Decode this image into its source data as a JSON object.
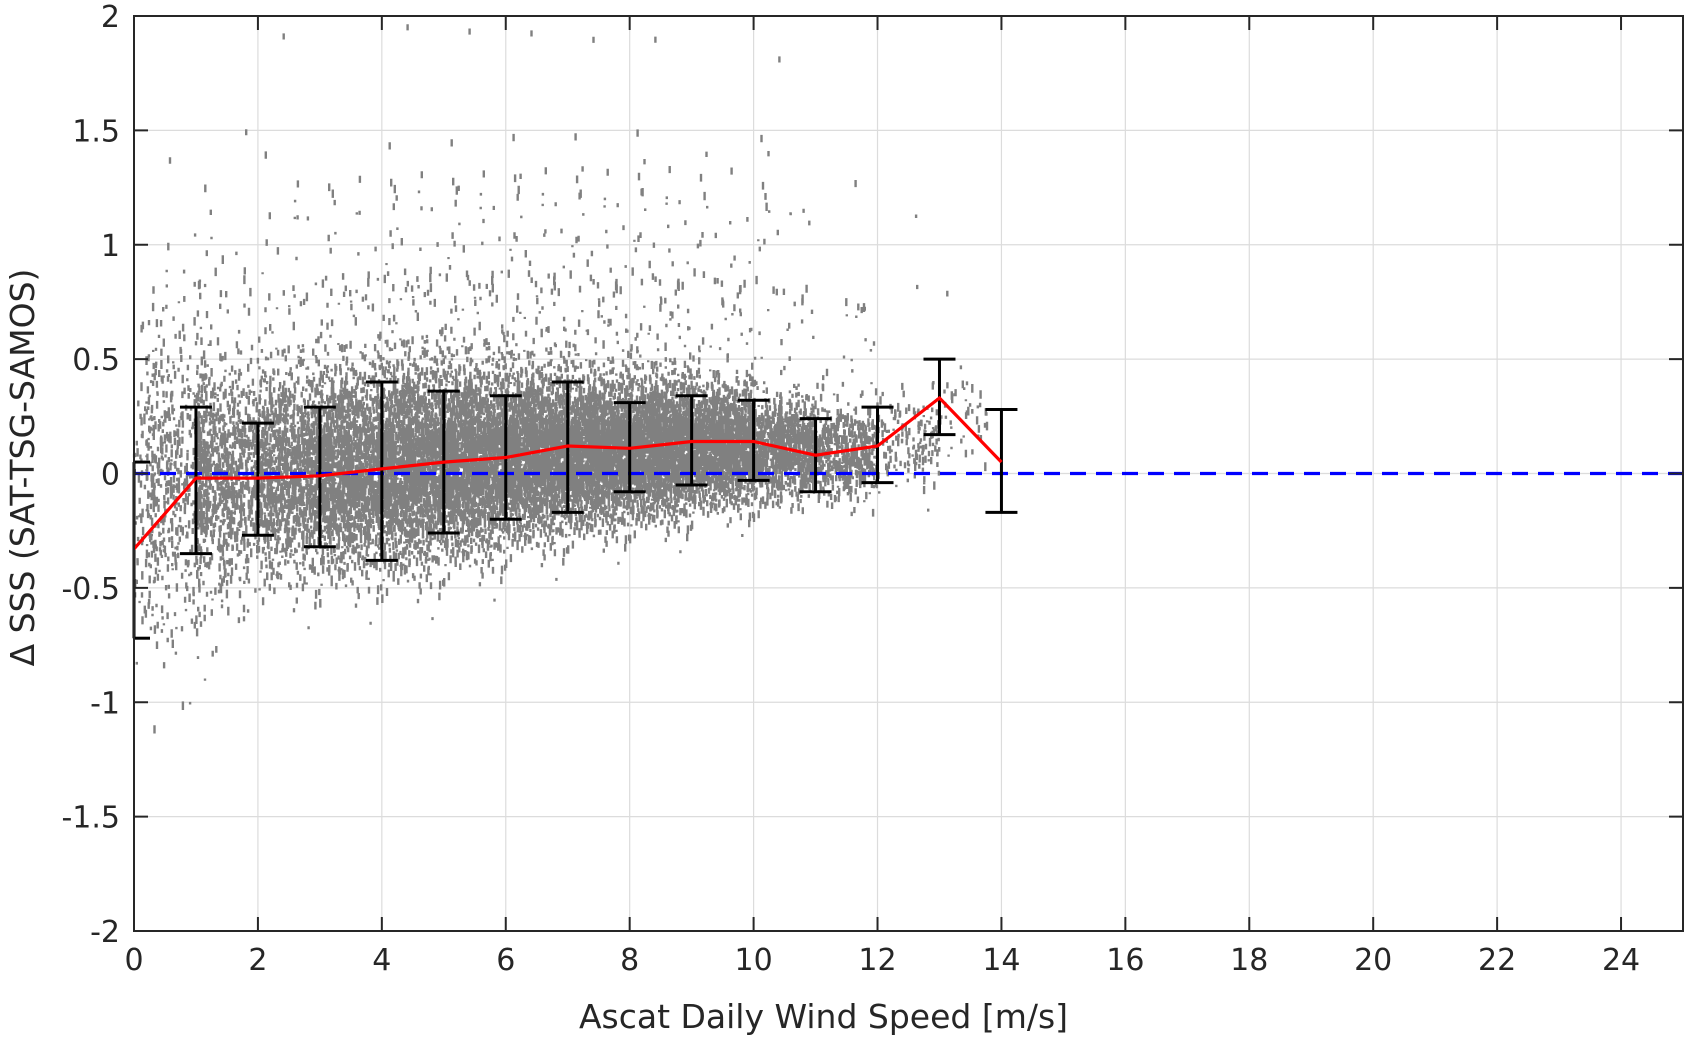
{
  "chart_data": {
    "type": "scatter",
    "title": "",
    "xlabel": "Ascat Daily Wind Speed [m/s]",
    "ylabel": "Δ SSS (SAT-TSG-SAMOS)",
    "xlim": [
      0,
      25
    ],
    "ylim": [
      -2,
      2
    ],
    "xticks": [
      0,
      2,
      4,
      6,
      8,
      10,
      12,
      14,
      16,
      18,
      20,
      22,
      24
    ],
    "yticks": [
      -2,
      -1.5,
      -1,
      -0.5,
      0,
      0.5,
      1,
      1.5,
      2
    ],
    "xtick_labels": [
      "0",
      "2",
      "4",
      "6",
      "8",
      "10",
      "12",
      "14",
      "16",
      "18",
      "20",
      "22",
      "24"
    ],
    "ytick_labels": [
      "-2",
      "-1.5",
      "-1",
      "-0.5",
      "0",
      "0.5",
      "1",
      "1.5",
      "2"
    ],
    "grid": true,
    "reference_line": {
      "y": 0,
      "style": "dashed",
      "color": "#0000ff"
    },
    "colors": {
      "scatter": "#808080",
      "mean_line": "#ff0000",
      "error_bars": "#000000",
      "reference": "#0000ff"
    },
    "scatter_density": {
      "description_units": "x in m/s, y in ΔSSS",
      "bins": [
        {
          "x": 0.2,
          "center": -0.1,
          "spread": 0.3,
          "n": 260
        },
        {
          "x": 0.7,
          "center": 0.0,
          "spread": 0.35,
          "n": 420
        },
        {
          "x": 1.5,
          "center": 0.0,
          "spread": 0.24,
          "n": 900
        },
        {
          "x": 2.5,
          "center": 0.0,
          "spread": 0.22,
          "n": 1300
        },
        {
          "x": 3.5,
          "center": 0.02,
          "spread": 0.22,
          "n": 1700
        },
        {
          "x": 4.5,
          "center": 0.04,
          "spread": 0.22,
          "n": 2000
        },
        {
          "x": 5.5,
          "center": 0.06,
          "spread": 0.2,
          "n": 2200
        },
        {
          "x": 6.5,
          "center": 0.09,
          "spread": 0.18,
          "n": 2300
        },
        {
          "x": 7.5,
          "center": 0.1,
          "spread": 0.16,
          "n": 2200
        },
        {
          "x": 8.5,
          "center": 0.12,
          "spread": 0.15,
          "n": 2000
        },
        {
          "x": 9.5,
          "center": 0.13,
          "spread": 0.13,
          "n": 1600
        },
        {
          "x": 10.5,
          "center": 0.11,
          "spread": 0.11,
          "n": 1000
        },
        {
          "x": 11.5,
          "center": 0.1,
          "spread": 0.1,
          "n": 500
        },
        {
          "x": 12.5,
          "center": 0.15,
          "spread": 0.1,
          "n": 150
        },
        {
          "x": 13.3,
          "center": 0.28,
          "spread": 0.1,
          "n": 50
        }
      ]
    },
    "mean_series": {
      "x": [
        0,
        1,
        2,
        3,
        4,
        5,
        6,
        7,
        8,
        9,
        10,
        11,
        12,
        13,
        14
      ],
      "y": [
        -0.33,
        -0.02,
        -0.02,
        -0.01,
        0.02,
        0.05,
        0.07,
        0.12,
        0.11,
        0.14,
        0.14,
        0.08,
        0.12,
        0.33,
        0.05
      ]
    },
    "error_bars": [
      {
        "x": 0,
        "low": -0.72,
        "high": 0.05
      },
      {
        "x": 1,
        "low": -0.35,
        "high": 0.29
      },
      {
        "x": 2,
        "low": -0.27,
        "high": 0.22
      },
      {
        "x": 3,
        "low": -0.32,
        "high": 0.29
      },
      {
        "x": 4,
        "low": -0.38,
        "high": 0.4
      },
      {
        "x": 5,
        "low": -0.26,
        "high": 0.36
      },
      {
        "x": 6,
        "low": -0.2,
        "high": 0.34
      },
      {
        "x": 7,
        "low": -0.17,
        "high": 0.4
      },
      {
        "x": 8,
        "low": -0.08,
        "high": 0.31
      },
      {
        "x": 9,
        "low": -0.05,
        "high": 0.34
      },
      {
        "x": 10,
        "low": -0.03,
        "high": 0.32
      },
      {
        "x": 11,
        "low": -0.08,
        "high": 0.24
      },
      {
        "x": 12,
        "low": -0.04,
        "high": 0.29
      },
      {
        "x": 13,
        "low": 0.17,
        "high": 0.5
      },
      {
        "x": 14,
        "low": -0.17,
        "high": 0.28
      }
    ]
  }
}
